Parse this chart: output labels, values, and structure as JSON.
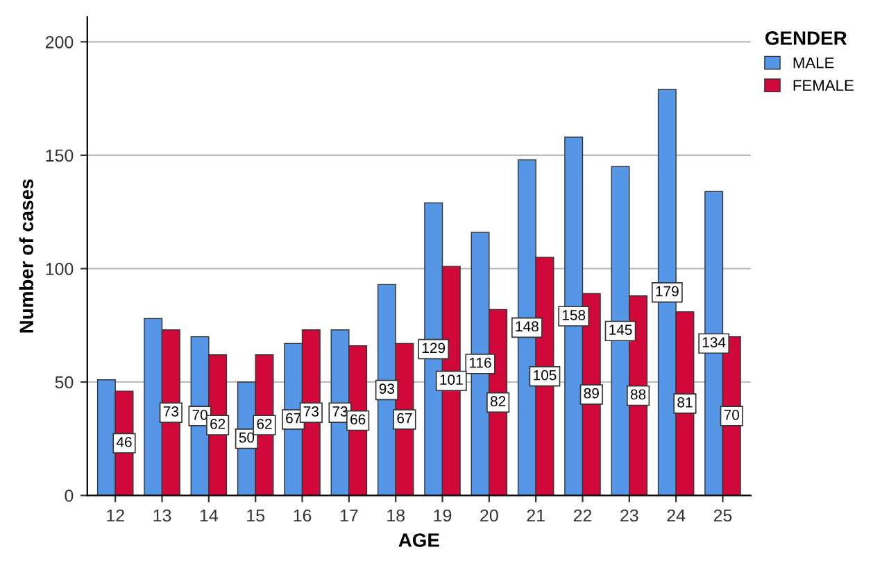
{
  "chart_data": {
    "type": "bar",
    "xlabel": "AGE",
    "ylabel": "Number of cases",
    "legend_title": "GENDER",
    "categories": [
      "12",
      "13",
      "14",
      "15",
      "16",
      "17",
      "18",
      "19",
      "20",
      "21",
      "22",
      "23",
      "24",
      "25"
    ],
    "series": [
      {
        "name": "MALE",
        "color": "#5596e6",
        "values": [
          51,
          78,
          70,
          50,
          67,
          73,
          93,
          129,
          116,
          148,
          158,
          145,
          179,
          134
        ],
        "value_labels": [
          null,
          null,
          "70",
          "50",
          "67",
          "73",
          "93",
          "129",
          "116",
          "148",
          "158",
          "145",
          "179",
          "134"
        ]
      },
      {
        "name": "FEMALE",
        "color": "#d1093a",
        "values": [
          46,
          73,
          62,
          62,
          73,
          66,
          67,
          101,
          82,
          105,
          89,
          88,
          81,
          70
        ],
        "value_labels": [
          "46",
          "73",
          "62",
          "62",
          "73",
          "66",
          "67",
          "101",
          "82",
          "105",
          "89",
          "88",
          "81",
          "70"
        ]
      }
    ],
    "ylim": [
      0,
      211
    ],
    "yticks": [
      0,
      50,
      100,
      150,
      200
    ],
    "grid": "y",
    "legend": "top right"
  }
}
